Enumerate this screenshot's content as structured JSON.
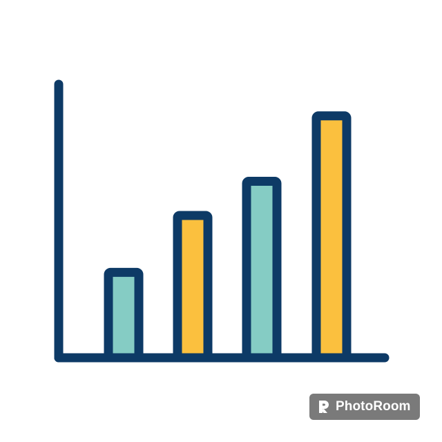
{
  "icon": {
    "name": "bar-chart-icon",
    "bar_levels": [
      0.3,
      0.5,
      0.62,
      0.85
    ],
    "bar_fills": [
      "#85ccc4",
      "#fbc03e",
      "#85ccc4",
      "#fbc03e"
    ],
    "outline_color": "#0d3a66",
    "background_color": "#ffffff"
  },
  "watermark": {
    "text": "PhotoRoom",
    "logo_icon": "photoroom-logo-icon",
    "background_color": "#7a7a7a",
    "text_color": "#ffffff"
  }
}
